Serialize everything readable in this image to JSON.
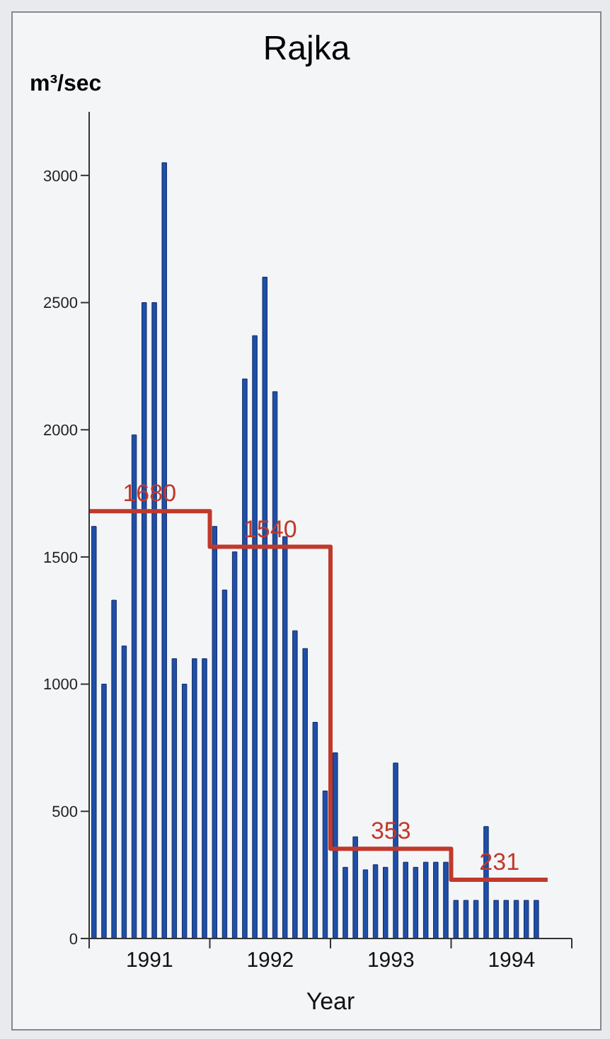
{
  "chart_data": {
    "type": "bar",
    "title": "Rajka",
    "xlabel": "Year",
    "ylabel": "m³/sec",
    "xlim": [
      1991,
      1995
    ],
    "xticks": [
      {
        "value": 1991,
        "label": null
      },
      {
        "value": 1991.5,
        "label": "1991"
      },
      {
        "value": 1992,
        "label": null
      },
      {
        "value": 1992.5,
        "label": "1992"
      },
      {
        "value": 1993,
        "label": null
      },
      {
        "value": 1993.5,
        "label": "1993"
      },
      {
        "value": 1994,
        "label": null
      },
      {
        "value": 1994.5,
        "label": "1994"
      },
      {
        "value": 1995,
        "label": null
      }
    ],
    "ylim": [
      0,
      3250
    ],
    "yticks": [
      0,
      500,
      1000,
      1500,
      2000,
      2500,
      3000
    ],
    "grid": false,
    "legend": false,
    "x": [
      1991.042,
      1991.125,
      1991.208,
      1991.292,
      1991.375,
      1991.458,
      1991.542,
      1991.625,
      1991.708,
      1991.792,
      1991.875,
      1991.958,
      1992.042,
      1992.125,
      1992.208,
      1992.292,
      1992.375,
      1992.458,
      1992.542,
      1992.625,
      1992.708,
      1992.792,
      1992.875,
      1992.958,
      1993.042,
      1993.125,
      1993.208,
      1993.292,
      1993.375,
      1993.458,
      1993.542,
      1993.625,
      1993.708,
      1993.792,
      1993.875,
      1993.958,
      1994.042,
      1994.125,
      1994.208,
      1994.292,
      1994.375,
      1994.458,
      1994.542,
      1994.625,
      1994.708
    ],
    "series": [
      {
        "color": "#1f4fa8",
        "values": [
          1620,
          1000,
          1330,
          1150,
          1980,
          2500,
          2500,
          3050,
          1100,
          1000,
          1100,
          1100,
          1620,
          1370,
          1520,
          2200,
          2370,
          2600,
          2150,
          1580,
          1210,
          1140,
          850,
          580,
          730,
          280,
          400,
          270,
          290,
          280,
          690,
          300,
          280,
          300,
          300,
          300,
          150,
          150,
          150,
          440,
          150,
          150,
          150,
          150,
          150
        ]
      },
      {
        "type": "step",
        "color": "#c0392b",
        "x": [
          1991,
          1992,
          1993,
          1994,
          1994.8
        ],
        "values": [
          1680,
          1540,
          353,
          231,
          231
        ],
        "value_labels": [
          "1680",
          "1540",
          "353",
          "231",
          null
        ]
      }
    ]
  }
}
